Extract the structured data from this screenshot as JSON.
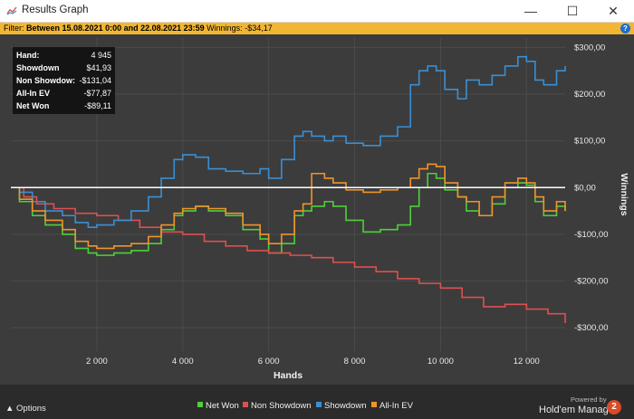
{
  "window": {
    "title": "Results Graph",
    "controls": {
      "minimize": "—",
      "maximize": "☐",
      "close": "✕"
    }
  },
  "filter": {
    "label": "Filter:",
    "text": "Between 15.08.2021 0:00 and 22.08.2021 23:59",
    "winnings_label": "Winnings:",
    "winnings_value": "-$34,17",
    "help_label": "?"
  },
  "info_box": {
    "rows": [
      {
        "label": "Hand:",
        "value": "4 945"
      },
      {
        "label": "Showdown",
        "value": "$41,93"
      },
      {
        "label": "Non Showdow:",
        "value": "-$131,04"
      },
      {
        "label": "All-In EV",
        "value": "-$77,87"
      },
      {
        "label": "Net Won",
        "value": "-$89,11"
      }
    ]
  },
  "footer": {
    "options_label": "Options",
    "powered_by": "Powered by",
    "brand_name": "Hold'em Manager",
    "brand_badge": "2"
  },
  "chart_data": {
    "type": "line",
    "xlabel": "Hands",
    "ylabel": "Winnings",
    "xlim": [
      0,
      12900
    ],
    "ylim": [
      -350,
      320
    ],
    "x_ticks": [
      2000,
      4000,
      6000,
      8000,
      10000,
      12000
    ],
    "x_tick_labels": [
      "2 000",
      "4 000",
      "6 000",
      "8 000",
      "10 000",
      "12 000"
    ],
    "y_ticks": [
      300,
      200,
      100,
      0,
      -100,
      -200,
      -300
    ],
    "y_tick_labels": [
      "$300,00",
      "$200,00",
      "$100,00",
      "$0,00",
      "-$100,00",
      "-$200,00",
      "-$300,00"
    ],
    "grid": true,
    "legend_position": "bottom",
    "series": [
      {
        "name": "Net Won",
        "color": "#4cd137",
        "x": [
          0,
          200,
          500,
          800,
          1200,
          1500,
          1800,
          2000,
          2400,
          2800,
          3200,
          3500,
          3800,
          4000,
          4300,
          4600,
          5000,
          5400,
          5800,
          6000,
          6300,
          6600,
          6800,
          7000,
          7300,
          7500,
          7800,
          8200,
          8600,
          9000,
          9300,
          9500,
          9700,
          9900,
          10100,
          10400,
          10600,
          10900,
          11200,
          11500,
          11800,
          12000,
          12200,
          12400,
          12700,
          12900
        ],
        "y": [
          0,
          -30,
          -60,
          -80,
          -100,
          -130,
          -140,
          -145,
          -140,
          -135,
          -120,
          -90,
          -60,
          -50,
          -40,
          -50,
          -60,
          -90,
          -110,
          -140,
          -120,
          -60,
          -50,
          -40,
          -30,
          -40,
          -70,
          -95,
          -90,
          -80,
          -40,
          0,
          30,
          20,
          -5,
          -20,
          -50,
          -60,
          -35,
          0,
          10,
          5,
          -30,
          -60,
          -40,
          -50
        ]
      },
      {
        "name": "Non Showdown",
        "color": "#e04f4f",
        "x": [
          0,
          300,
          600,
          1000,
          1500,
          2000,
          2500,
          3000,
          3500,
          4000,
          4500,
          5000,
          5500,
          6000,
          6500,
          7000,
          7500,
          8000,
          8500,
          9000,
          9500,
          10000,
          10500,
          11000,
          11500,
          12000,
          12500,
          12900
        ],
        "y": [
          0,
          -20,
          -35,
          -45,
          -55,
          -60,
          -70,
          -85,
          -95,
          -100,
          -115,
          -125,
          -135,
          -140,
          -145,
          -150,
          -160,
          -170,
          -180,
          -195,
          -205,
          -215,
          -235,
          -255,
          -250,
          -260,
          -270,
          -290
        ]
      },
      {
        "name": "Showdown",
        "color": "#3a8fd4",
        "x": [
          0,
          200,
          500,
          800,
          1200,
          1500,
          1800,
          2000,
          2400,
          2800,
          3200,
          3500,
          3800,
          4000,
          4300,
          4600,
          5000,
          5400,
          5800,
          6000,
          6300,
          6600,
          6800,
          7000,
          7300,
          7500,
          7800,
          8200,
          8600,
          9000,
          9300,
          9500,
          9700,
          9900,
          10100,
          10400,
          10600,
          10900,
          11200,
          11500,
          11800,
          12000,
          12200,
          12400,
          12700,
          12900
        ],
        "y": [
          0,
          -10,
          -30,
          -50,
          -60,
          -75,
          -85,
          -80,
          -70,
          -50,
          -20,
          20,
          60,
          70,
          65,
          40,
          35,
          30,
          40,
          20,
          60,
          110,
          120,
          110,
          100,
          110,
          95,
          90,
          110,
          130,
          220,
          250,
          260,
          250,
          210,
          190,
          230,
          220,
          240,
          260,
          280,
          270,
          230,
          220,
          250,
          260
        ]
      },
      {
        "name": "All-In EV",
        "color": "#f0932b",
        "x": [
          0,
          200,
          500,
          800,
          1200,
          1500,
          1800,
          2000,
          2400,
          2800,
          3200,
          3500,
          3800,
          4000,
          4300,
          4600,
          5000,
          5400,
          5800,
          6000,
          6300,
          6600,
          6800,
          7000,
          7300,
          7500,
          7800,
          8200,
          8600,
          9000,
          9300,
          9500,
          9700,
          9900,
          10100,
          10400,
          10600,
          10900,
          11200,
          11500,
          11800,
          12000,
          12200,
          12400,
          12700,
          12900
        ],
        "y": [
          0,
          -25,
          -50,
          -70,
          -90,
          -115,
          -125,
          -130,
          -125,
          -120,
          -105,
          -80,
          -55,
          -45,
          -40,
          -45,
          -55,
          -80,
          -100,
          -120,
          -100,
          -50,
          -35,
          30,
          20,
          10,
          -5,
          -10,
          -5,
          0,
          20,
          40,
          50,
          45,
          10,
          -20,
          -30,
          -60,
          -20,
          10,
          20,
          10,
          -20,
          -50,
          -30,
          -50
        ]
      }
    ],
    "zero_line": 0
  },
  "colors": {
    "plot_bg": "#3c3c3c",
    "grid": "#4b4b4b",
    "filter_bar": "#f2b632",
    "zero_line": "#ffffff"
  }
}
